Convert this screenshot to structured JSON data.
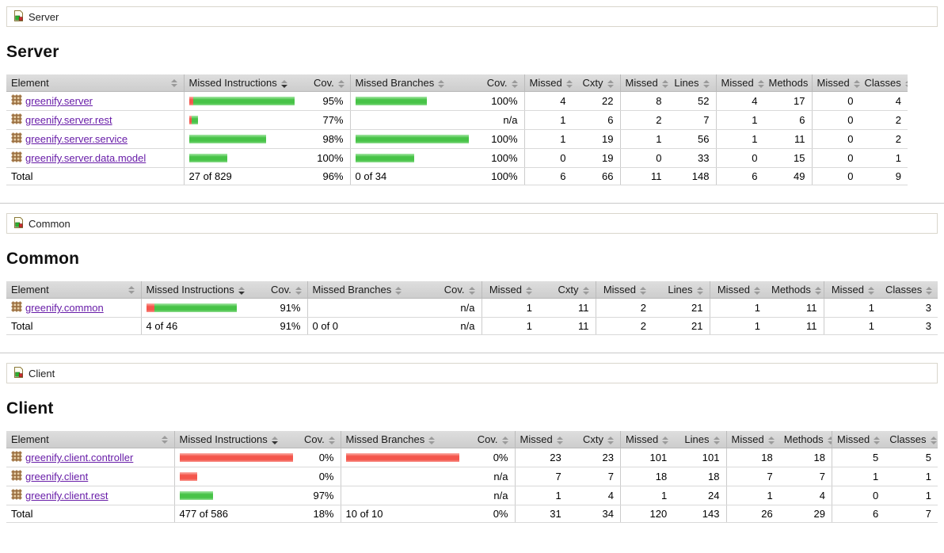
{
  "colors": {
    "bar_green": "#47c347",
    "bar_red": "#f4564c",
    "link": "#681da8",
    "header_bg": "#d4d4d4"
  },
  "columns": [
    {
      "label": "Element",
      "sorted": false
    },
    {
      "label": "Missed Instructions",
      "sorted": true
    },
    {
      "label": "Cov.",
      "sorted": false
    },
    {
      "label": "Missed Branches",
      "sorted": false
    },
    {
      "label": "Cov.",
      "sorted": false
    },
    {
      "label": "Missed",
      "sorted": false
    },
    {
      "label": "Cxty",
      "sorted": false
    },
    {
      "label": "Missed",
      "sorted": false
    },
    {
      "label": "Lines",
      "sorted": false
    },
    {
      "label": "Missed",
      "sorted": false
    },
    {
      "label": "Methods",
      "sorted": false
    },
    {
      "label": "Missed",
      "sorted": false
    },
    {
      "label": "Classes",
      "sorted": false
    }
  ],
  "sections": [
    {
      "id": "server",
      "breadcrumb": "Server",
      "title": "Server",
      "rows": [
        {
          "name": "greenify.server",
          "instr_bar": {
            "red": 5,
            "green": 128
          },
          "instr_cov": "95%",
          "branch_bar": {
            "red": 0,
            "green": 90
          },
          "branch_cov": "100%",
          "missed_cxty": "4",
          "cxty": "22",
          "missed_lines": "8",
          "lines": "52",
          "missed_methods": "4",
          "methods": "17",
          "missed_classes": "0",
          "classes": "4"
        },
        {
          "name": "greenify.server.rest",
          "instr_bar": {
            "red": 3,
            "green": 8
          },
          "instr_cov": "77%",
          "branch_bar": {
            "red": 0,
            "green": 0
          },
          "branch_cov": "n/a",
          "missed_cxty": "1",
          "cxty": "6",
          "missed_lines": "2",
          "lines": "7",
          "missed_methods": "1",
          "methods": "6",
          "missed_classes": "0",
          "classes": "2"
        },
        {
          "name": "greenify.server.service",
          "instr_bar": {
            "red": 0,
            "green": 97
          },
          "instr_cov": "98%",
          "branch_bar": {
            "red": 0,
            "green": 148
          },
          "branch_cov": "100%",
          "missed_cxty": "1",
          "cxty": "19",
          "missed_lines": "1",
          "lines": "56",
          "missed_methods": "1",
          "methods": "11",
          "missed_classes": "0",
          "classes": "2"
        },
        {
          "name": "greenify.server.data.model",
          "instr_bar": {
            "red": 0,
            "green": 48
          },
          "instr_cov": "100%",
          "branch_bar": {
            "red": 0,
            "green": 74
          },
          "branch_cov": "100%",
          "missed_cxty": "0",
          "cxty": "19",
          "missed_lines": "0",
          "lines": "33",
          "missed_methods": "0",
          "methods": "15",
          "missed_classes": "0",
          "classes": "1"
        }
      ],
      "total": {
        "label": "Total",
        "instr": "27 of 829",
        "instr_cov": "96%",
        "branch": "0 of 34",
        "branch_cov": "100%",
        "missed_cxty": "6",
        "cxty": "66",
        "missed_lines": "11",
        "lines": "148",
        "missed_methods": "6",
        "methods": "49",
        "missed_classes": "0",
        "classes": "9"
      }
    },
    {
      "id": "common",
      "breadcrumb": "Common",
      "title": "Common",
      "rows": [
        {
          "name": "greenify.common",
          "instr_bar": {
            "red": 10,
            "green": 104
          },
          "instr_cov": "91%",
          "branch_bar": {
            "red": 0,
            "green": 0
          },
          "branch_cov": "n/a",
          "missed_cxty": "1",
          "cxty": "11",
          "missed_lines": "2",
          "lines": "21",
          "missed_methods": "1",
          "methods": "11",
          "missed_classes": "1",
          "classes": "3"
        }
      ],
      "total": {
        "label": "Total",
        "instr": "4 of 46",
        "instr_cov": "91%",
        "branch": "0 of 0",
        "branch_cov": "n/a",
        "missed_cxty": "1",
        "cxty": "11",
        "missed_lines": "2",
        "lines": "21",
        "missed_methods": "1",
        "methods": "11",
        "missed_classes": "1",
        "classes": "3"
      }
    },
    {
      "id": "client",
      "breadcrumb": "Client",
      "title": "Client",
      "rows": [
        {
          "name": "greenify.client.controller",
          "instr_bar": {
            "red": 143,
            "green": 0
          },
          "instr_cov": "0%",
          "branch_bar": {
            "red": 145,
            "green": 0
          },
          "branch_cov": "0%",
          "missed_cxty": "23",
          "cxty": "23",
          "missed_lines": "101",
          "lines": "101",
          "missed_methods": "18",
          "methods": "18",
          "missed_classes": "5",
          "classes": "5"
        },
        {
          "name": "greenify.client",
          "instr_bar": {
            "red": 22,
            "green": 0
          },
          "instr_cov": "0%",
          "branch_bar": {
            "red": 0,
            "green": 0
          },
          "branch_cov": "n/a",
          "missed_cxty": "7",
          "cxty": "7",
          "missed_lines": "18",
          "lines": "18",
          "missed_methods": "7",
          "methods": "7",
          "missed_classes": "1",
          "classes": "1"
        },
        {
          "name": "greenify.client.rest",
          "instr_bar": {
            "red": 0,
            "green": 42
          },
          "instr_cov": "97%",
          "branch_bar": {
            "red": 0,
            "green": 0
          },
          "branch_cov": "n/a",
          "missed_cxty": "1",
          "cxty": "4",
          "missed_lines": "1",
          "lines": "24",
          "missed_methods": "1",
          "methods": "4",
          "missed_classes": "0",
          "classes": "1"
        }
      ],
      "total": {
        "label": "Total",
        "instr": "477 of 586",
        "instr_cov": "18%",
        "branch": "10 of 10",
        "branch_cov": "0%",
        "missed_cxty": "31",
        "cxty": "34",
        "missed_lines": "120",
        "lines": "143",
        "missed_methods": "26",
        "methods": "29",
        "missed_classes": "6",
        "classes": "7"
      }
    }
  ]
}
